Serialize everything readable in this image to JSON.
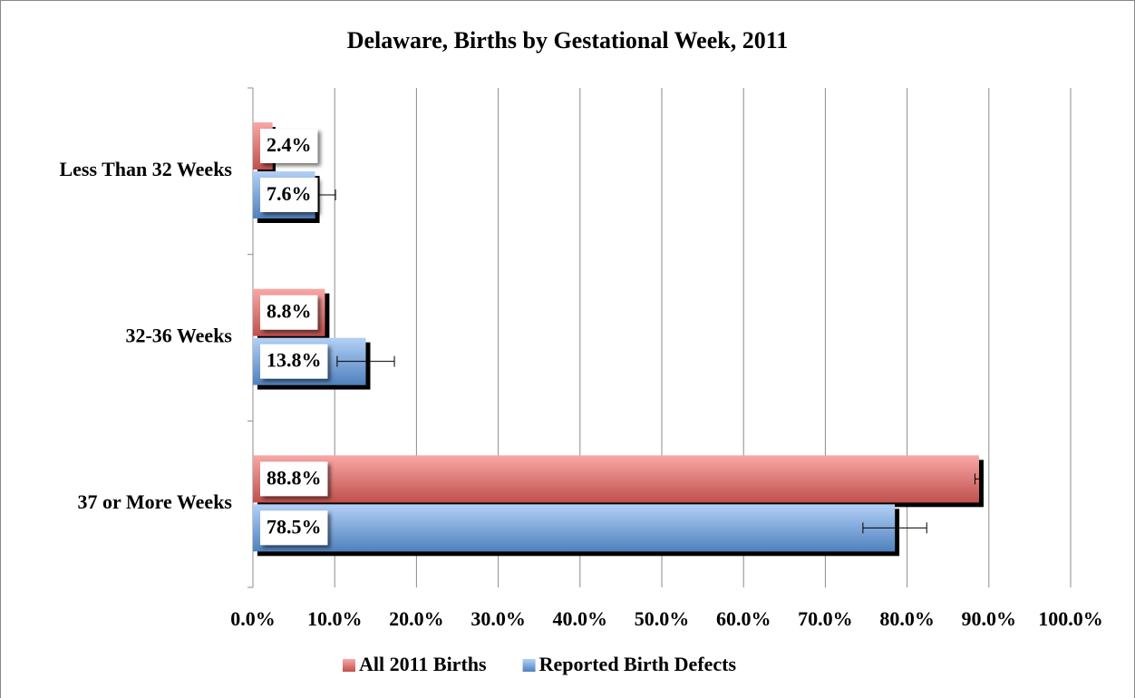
{
  "chart_data": {
    "type": "hbar",
    "title": "Delaware, Births by Gestational Week, 2011",
    "categories": [
      "Less Than 32 Weeks",
      "32-36 Weeks",
      "37 or More Weeks"
    ],
    "series": [
      {
        "name": "All 2011 Births",
        "color": "#c0504d",
        "light": "#f8a8a6",
        "values": [
          2.4,
          8.8,
          88.8
        ],
        "value_labels": [
          "2.4%",
          "8.8%",
          "88.8%"
        ],
        "errors": [
          null,
          null,
          0.5
        ]
      },
      {
        "name": "Reported Birth Defects",
        "color": "#4f81bd",
        "light": "#b3d0f7",
        "values": [
          7.6,
          13.8,
          78.5
        ],
        "value_labels": [
          "7.6%",
          "13.8%",
          "78.5%"
        ],
        "errors": [
          2.5,
          3.5,
          3.9
        ]
      }
    ],
    "xlim": [
      0,
      100
    ],
    "xticks": [
      {
        "value": 0,
        "label": "0.0%"
      },
      {
        "value": 10,
        "label": "10.0%"
      },
      {
        "value": 20,
        "label": "20.0%"
      },
      {
        "value": 30,
        "label": "30.0%"
      },
      {
        "value": 40,
        "label": "40.0%"
      },
      {
        "value": 50,
        "label": "50.0%"
      },
      {
        "value": 60,
        "label": "60.0%"
      },
      {
        "value": 70,
        "label": "70.0%"
      },
      {
        "value": 80,
        "label": "80.0%"
      },
      {
        "value": 90,
        "label": "90.0%"
      },
      {
        "value": 100,
        "label": "100.0%"
      }
    ],
    "grid": true,
    "legend": "bottom"
  }
}
